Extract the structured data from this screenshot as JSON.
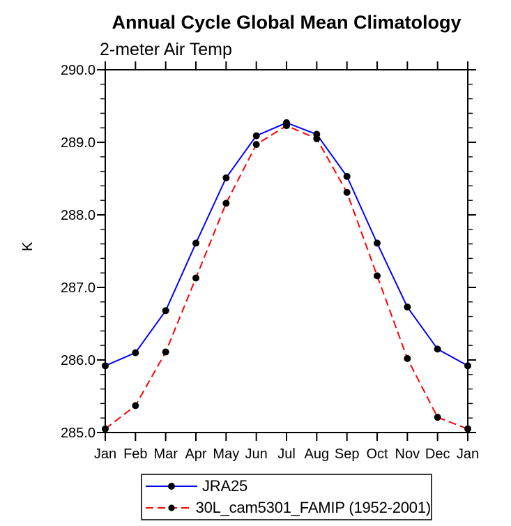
{
  "page": {
    "background": "#ffffff"
  },
  "chart_data": {
    "type": "line",
    "title": "Annual Cycle Global Mean Climatology",
    "subtitle": "2-meter Air Temp",
    "xlabel": "",
    "ylabel": "K",
    "categories": [
      "Jan",
      "Feb",
      "Mar",
      "Apr",
      "May",
      "Jun",
      "Jul",
      "Aug",
      "Sep",
      "Oct",
      "Nov",
      "Dec",
      "Jan"
    ],
    "ylim": [
      285.0,
      290.0
    ],
    "ytick_labels": [
      "285.0",
      "286.0",
      "287.0",
      "288.0",
      "289.0",
      "290.0"
    ],
    "ytick_step": 1.0,
    "yminor_step": 0.2,
    "grid": false,
    "legend_position": "bottom",
    "axis_color": "#000000",
    "marker_color": "#000000",
    "series": [
      {
        "name": "JRA25",
        "color": "#0000ff",
        "line_style": "solid",
        "marker": "filled-circle",
        "values": [
          285.92,
          286.1,
          286.68,
          287.61,
          288.51,
          289.09,
          289.27,
          289.11,
          288.53,
          287.61,
          286.73,
          286.15,
          285.92
        ]
      },
      {
        "name": "30L_cam5301_FAMIP (1952-2001)",
        "color": "#ff0000",
        "line_style": "dashed",
        "marker": "filled-circle",
        "values": [
          285.05,
          285.37,
          286.11,
          287.13,
          288.16,
          288.97,
          289.23,
          289.05,
          288.31,
          287.16,
          286.02,
          285.21,
          285.05
        ]
      }
    ]
  }
}
